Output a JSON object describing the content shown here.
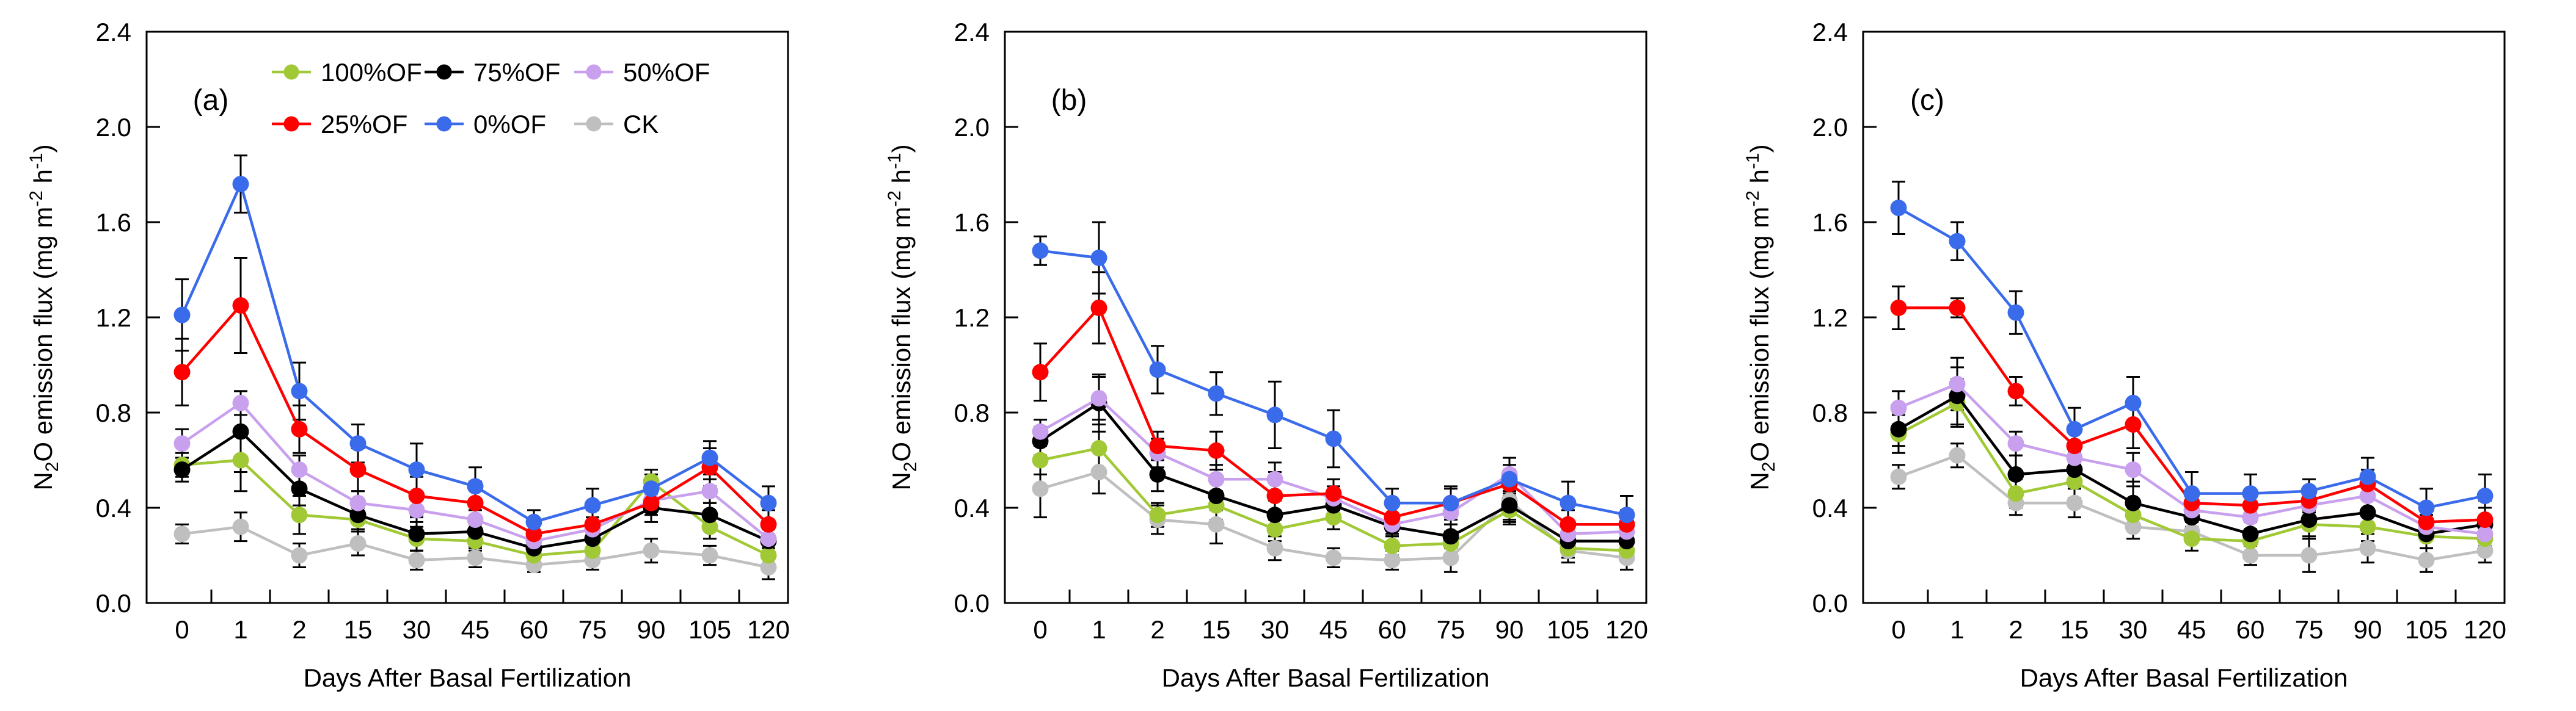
{
  "figure": {
    "background": "#ffffff",
    "xlabel": "Days After Basal Fertilization",
    "ylabel": "N2O emission flux (mg m-2 h-1)",
    "ylabel_rich": {
      "pre": "N",
      "sub": "2",
      "mid": "O emission flux (mg m",
      "sup1": "-2",
      "mid2": " h",
      "sup2": "-1",
      "end": ")"
    },
    "panel_letters": [
      "(a)",
      "(b)",
      "(c)"
    ],
    "legend": {
      "rows": [
        [
          "100%OF",
          "75%OF",
          "50%OF"
        ],
        [
          "25%OF",
          "0%OF",
          "CK"
        ]
      ],
      "position": "top-left-of-panel-a"
    },
    "grid": "off"
  },
  "series_colors": {
    "100%OF": "#A1C935",
    "75%OF": "#000000",
    "50%OF": "#C9A0EE",
    "25%OF": "#FF0000",
    "0%OF": "#3A6BEB",
    "CK": "#BFBFBF"
  },
  "error_bar_color": "#000000",
  "chart_data": [
    {
      "type": "line",
      "panel_label": "(a)",
      "title": "",
      "xlabel": "Days After Basal Fertilization",
      "ylabel": "N2O emission flux (mg m-2 h-1)",
      "x_categories": [
        "0",
        "1",
        "2",
        "15",
        "30",
        "45",
        "60",
        "75",
        "90",
        "105",
        "120"
      ],
      "ylim": [
        0.0,
        2.4
      ],
      "ytick_labels": [
        "0.0",
        "0.4",
        "0.8",
        "1.2",
        "1.6",
        "2.0",
        "2.4"
      ],
      "legend_position": "upper-left",
      "series": [
        {
          "name": "CK",
          "values": [
            0.29,
            0.32,
            0.2,
            0.25,
            0.18,
            0.19,
            0.16,
            0.18,
            0.22,
            0.2,
            0.15
          ],
          "errors": [
            0.04,
            0.06,
            0.05,
            0.05,
            0.04,
            0.04,
            0.03,
            0.04,
            0.05,
            0.04,
            0.05
          ]
        },
        {
          "name": "100%OF",
          "values": [
            0.58,
            0.6,
            0.37,
            0.35,
            0.27,
            0.26,
            0.2,
            0.22,
            0.51,
            0.32,
            0.2
          ],
          "errors": [
            0.05,
            0.13,
            0.08,
            0.05,
            0.05,
            0.04,
            0.04,
            0.05,
            0.05,
            0.05,
            0.05
          ]
        },
        {
          "name": "75%OF",
          "values": [
            0.56,
            0.72,
            0.48,
            0.37,
            0.29,
            0.3,
            0.23,
            0.27,
            0.4,
            0.37,
            0.26
          ],
          "errors": [
            0.05,
            0.17,
            0.07,
            0.06,
            0.07,
            0.06,
            0.04,
            0.05,
            0.06,
            0.05,
            0.05
          ]
        },
        {
          "name": "50%OF",
          "values": [
            0.67,
            0.84,
            0.56,
            0.42,
            0.39,
            0.35,
            0.26,
            0.31,
            0.43,
            0.47,
            0.27
          ],
          "errors": [
            0.06,
            0.05,
            0.06,
            0.05,
            0.05,
            0.04,
            0.04,
            0.05,
            0.04,
            0.05,
            0.04
          ]
        },
        {
          "name": "25%OF",
          "values": [
            0.97,
            1.25,
            0.73,
            0.56,
            0.45,
            0.42,
            0.29,
            0.33,
            0.42,
            0.57,
            0.33
          ],
          "errors": [
            0.14,
            0.2,
            0.1,
            0.09,
            0.08,
            0.09,
            0.05,
            0.06,
            0.05,
            0.08,
            0.06
          ]
        },
        {
          "name": "0%OF",
          "values": [
            1.21,
            1.76,
            0.89,
            0.67,
            0.56,
            0.49,
            0.34,
            0.41,
            0.48,
            0.61,
            0.42
          ],
          "errors": [
            0.15,
            0.12,
            0.12,
            0.08,
            0.11,
            0.08,
            0.05,
            0.07,
            0.06,
            0.07,
            0.07
          ]
        }
      ]
    },
    {
      "type": "line",
      "panel_label": "(b)",
      "title": "",
      "xlabel": "Days After Basal Fertilization",
      "ylabel": "N2O emission flux (mg m-2 h-1)",
      "x_categories": [
        "0",
        "1",
        "2",
        "15",
        "30",
        "45",
        "60",
        "75",
        "90",
        "105",
        "120"
      ],
      "ylim": [
        0.0,
        2.4
      ],
      "ytick_labels": [
        "0.0",
        "0.4",
        "0.8",
        "1.2",
        "1.6",
        "2.0",
        "2.4"
      ],
      "legend_position": "none",
      "series": [
        {
          "name": "CK",
          "values": [
            0.48,
            0.55,
            0.35,
            0.33,
            0.23,
            0.19,
            0.18,
            0.19,
            0.43,
            0.22,
            0.19
          ],
          "errors": [
            0.12,
            0.09,
            0.06,
            0.08,
            0.05,
            0.04,
            0.04,
            0.06,
            0.09,
            0.05,
            0.05
          ]
        },
        {
          "name": "100%OF",
          "values": [
            0.6,
            0.65,
            0.37,
            0.41,
            0.31,
            0.36,
            0.24,
            0.25,
            0.39,
            0.23,
            0.22
          ],
          "errors": [
            0.06,
            0.1,
            0.05,
            0.06,
            0.05,
            0.05,
            0.04,
            0.05,
            0.06,
            0.04,
            0.04
          ]
        },
        {
          "name": "75%OF",
          "values": [
            0.68,
            0.84,
            0.54,
            0.45,
            0.37,
            0.41,
            0.32,
            0.28,
            0.41,
            0.26,
            0.26
          ],
          "errors": [
            0.06,
            0.12,
            0.07,
            0.06,
            0.06,
            0.05,
            0.04,
            0.05,
            0.06,
            0.04,
            0.05
          ]
        },
        {
          "name": "50%OF",
          "values": [
            0.72,
            0.86,
            0.63,
            0.52,
            0.52,
            0.44,
            0.33,
            0.38,
            0.54,
            0.29,
            0.3
          ],
          "errors": [
            0.05,
            0.09,
            0.06,
            0.06,
            0.07,
            0.05,
            0.04,
            0.05,
            0.07,
            0.05,
            0.05
          ]
        },
        {
          "name": "25%OF",
          "values": [
            0.97,
            1.24,
            0.66,
            0.64,
            0.45,
            0.46,
            0.36,
            0.42,
            0.5,
            0.33,
            0.33
          ],
          "errors": [
            0.12,
            0.15,
            0.06,
            0.08,
            0.1,
            0.06,
            0.05,
            0.06,
            0.06,
            0.06,
            0.06
          ]
        },
        {
          "name": "0%OF",
          "values": [
            1.48,
            1.45,
            0.98,
            0.88,
            0.79,
            0.69,
            0.42,
            0.42,
            0.52,
            0.42,
            0.37
          ],
          "errors": [
            0.06,
            0.15,
            0.1,
            0.09,
            0.14,
            0.12,
            0.06,
            0.07,
            0.06,
            0.09,
            0.08
          ]
        }
      ]
    },
    {
      "type": "line",
      "panel_label": "(c)",
      "title": "",
      "xlabel": "Days After Basal Fertilization",
      "ylabel": "N2O emission flux (mg m-2 h-1)",
      "x_categories": [
        "0",
        "1",
        "2",
        "15",
        "30",
        "45",
        "60",
        "75",
        "90",
        "105",
        "120"
      ],
      "ylim": [
        0.0,
        2.4
      ],
      "ytick_labels": [
        "0.0",
        "0.4",
        "0.8",
        "1.2",
        "1.6",
        "2.0",
        "2.4"
      ],
      "legend_position": "none",
      "series": [
        {
          "name": "CK",
          "values": [
            0.53,
            0.62,
            0.42,
            0.42,
            0.32,
            0.3,
            0.2,
            0.2,
            0.23,
            0.18,
            0.22
          ],
          "errors": [
            0.05,
            0.05,
            0.05,
            0.06,
            0.05,
            0.04,
            0.04,
            0.07,
            0.06,
            0.05,
            0.05
          ]
        },
        {
          "name": "100%OF",
          "values": [
            0.71,
            0.84,
            0.46,
            0.51,
            0.37,
            0.27,
            0.26,
            0.33,
            0.32,
            0.28,
            0.27
          ],
          "errors": [
            0.08,
            0.1,
            0.06,
            0.07,
            0.06,
            0.05,
            0.05,
            0.06,
            0.06,
            0.05,
            0.05
          ]
        },
        {
          "name": "75%OF",
          "values": [
            0.73,
            0.87,
            0.54,
            0.56,
            0.42,
            0.36,
            0.29,
            0.35,
            0.38,
            0.29,
            0.33
          ],
          "errors": [
            0.07,
            0.12,
            0.08,
            0.07,
            0.09,
            0.06,
            0.05,
            0.07,
            0.06,
            0.06,
            0.07
          ]
        },
        {
          "name": "50%OF",
          "values": [
            0.82,
            0.92,
            0.67,
            0.61,
            0.56,
            0.39,
            0.36,
            0.41,
            0.45,
            0.32,
            0.29
          ],
          "errors": [
            0.07,
            0.11,
            0.05,
            0.06,
            0.07,
            0.05,
            0.05,
            0.05,
            0.06,
            0.05,
            0.05
          ]
        },
        {
          "name": "25%OF",
          "values": [
            1.24,
            1.24,
            0.89,
            0.66,
            0.75,
            0.42,
            0.41,
            0.43,
            0.5,
            0.34,
            0.35
          ],
          "errors": [
            0.09,
            0.04,
            0.06,
            0.07,
            0.1,
            0.05,
            0.05,
            0.05,
            0.06,
            0.05,
            0.08
          ]
        },
        {
          "name": "0%OF",
          "values": [
            1.66,
            1.52,
            1.22,
            0.73,
            0.84,
            0.46,
            0.46,
            0.47,
            0.53,
            0.4,
            0.45
          ],
          "errors": [
            0.11,
            0.08,
            0.09,
            0.09,
            0.11,
            0.09,
            0.08,
            0.05,
            0.08,
            0.08,
            0.09
          ]
        }
      ]
    }
  ]
}
